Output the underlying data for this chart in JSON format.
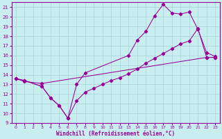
{
  "title": "",
  "xlabel": "Windchill (Refroidissement éolien,°C)",
  "ylabel": "",
  "bg_color": "#c8eef0",
  "grid_color": "#aad4d8",
  "line_color": "#990099",
  "xlim": [
    -0.5,
    23.5
  ],
  "ylim": [
    9,
    21.5
  ],
  "xtick_labels": [
    "0",
    "1",
    "2",
    "3",
    "4",
    "5",
    "6",
    "7",
    "8",
    "9",
    "10",
    "11",
    "12",
    "13",
    "14",
    "15",
    "16",
    "17",
    "18",
    "19",
    "20",
    "21",
    "22",
    "23"
  ],
  "xticks": [
    0,
    1,
    2,
    3,
    4,
    5,
    6,
    7,
    8,
    9,
    10,
    11,
    12,
    13,
    14,
    15,
    16,
    17,
    18,
    19,
    20,
    21,
    22,
    23
  ],
  "yticks": [
    9,
    10,
    11,
    12,
    13,
    14,
    15,
    16,
    17,
    18,
    19,
    20,
    21
  ],
  "line1_x": [
    0,
    1,
    3,
    4,
    5,
    6,
    7,
    8,
    13,
    14,
    15,
    16,
    17,
    18,
    19,
    20,
    21,
    22,
    23
  ],
  "line1_y": [
    13.6,
    13.4,
    12.8,
    11.6,
    10.8,
    9.5,
    13.0,
    14.2,
    16.0,
    17.6,
    18.5,
    20.1,
    21.3,
    20.4,
    20.3,
    20.5,
    18.7,
    16.3,
    15.9
  ],
  "line2_x": [
    0,
    1,
    3,
    4,
    5,
    6,
    7,
    8,
    9,
    10,
    11,
    12,
    13,
    14,
    15,
    16,
    17,
    18,
    19,
    20,
    21,
    22,
    23
  ],
  "line2_y": [
    13.6,
    13.4,
    12.8,
    11.6,
    10.8,
    9.5,
    11.3,
    12.2,
    12.6,
    13.0,
    13.4,
    13.7,
    14.1,
    14.6,
    15.2,
    15.7,
    16.2,
    16.7,
    17.2,
    17.5,
    18.8,
    15.8,
    15.8
  ],
  "line3_x": [
    0,
    1,
    3,
    22,
    23
  ],
  "line3_y": [
    13.6,
    13.3,
    13.1,
    15.8,
    15.8
  ]
}
